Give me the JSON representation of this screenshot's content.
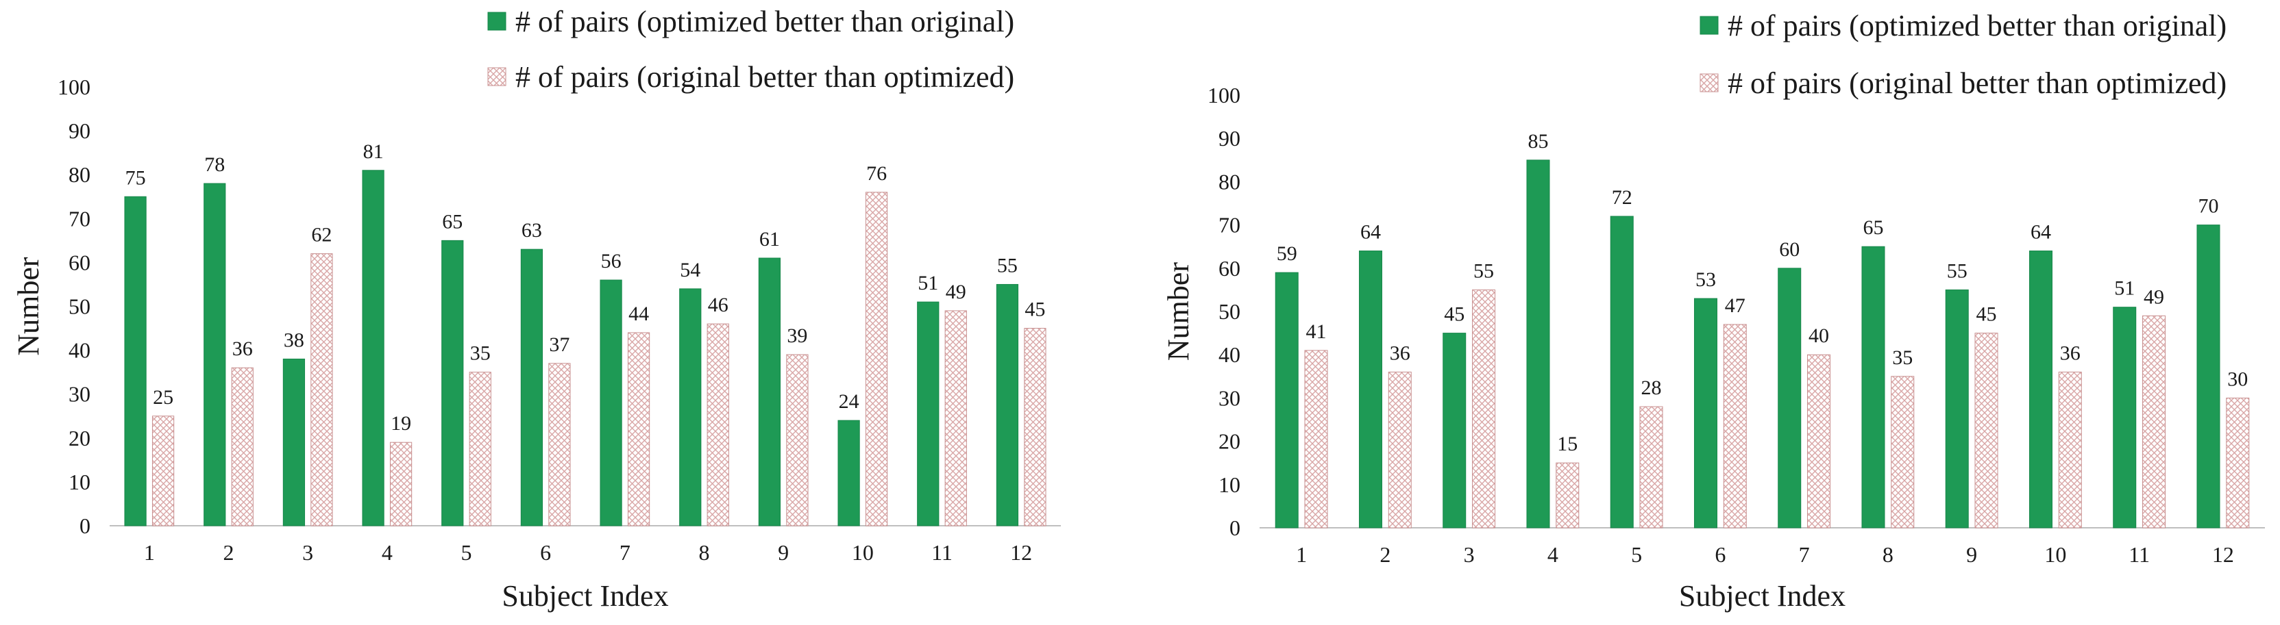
{
  "chart_data": [
    {
      "type": "bar",
      "xlabel": "Subject Index",
      "ylabel": "Number",
      "ylim": [
        0,
        100
      ],
      "yticks": [
        0,
        10,
        20,
        30,
        40,
        50,
        60,
        70,
        80,
        90,
        100
      ],
      "categories": [
        "1",
        "2",
        "3",
        "4",
        "5",
        "6",
        "7",
        "8",
        "9",
        "10",
        "11",
        "12"
      ],
      "legend_position": "top-right",
      "grid": false,
      "series": [
        {
          "name": "# of pairs (optimized better than original)",
          "color": "#1e9a55",
          "pattern": "solid",
          "values": [
            75,
            78,
            38,
            81,
            65,
            63,
            56,
            54,
            61,
            24,
            51,
            55
          ]
        },
        {
          "name": "# of pairs (original better than optimized)",
          "color": "#d9a6a6",
          "pattern": "crosshatch",
          "values": [
            25,
            36,
            62,
            19,
            35,
            37,
            44,
            46,
            39,
            76,
            49,
            45
          ]
        }
      ]
    },
    {
      "type": "bar",
      "xlabel": "Subject Index",
      "ylabel": "Number",
      "ylim": [
        0,
        100
      ],
      "yticks": [
        0,
        10,
        20,
        30,
        40,
        50,
        60,
        70,
        80,
        90,
        100
      ],
      "categories": [
        "1",
        "2",
        "3",
        "4",
        "5",
        "6",
        "7",
        "8",
        "9",
        "10",
        "11",
        "12"
      ],
      "legend_position": "top-right",
      "grid": false,
      "series": [
        {
          "name": "# of pairs (optimized better than original)",
          "color": "#1e9a55",
          "pattern": "solid",
          "values": [
            59,
            64,
            45,
            85,
            72,
            53,
            60,
            65,
            55,
            64,
            51,
            70
          ]
        },
        {
          "name": "# of pairs (original better than optimized)",
          "color": "#d9a6a6",
          "pattern": "crosshatch",
          "values": [
            41,
            36,
            55,
            15,
            28,
            47,
            40,
            35,
            45,
            36,
            49,
            30
          ]
        }
      ]
    }
  ]
}
